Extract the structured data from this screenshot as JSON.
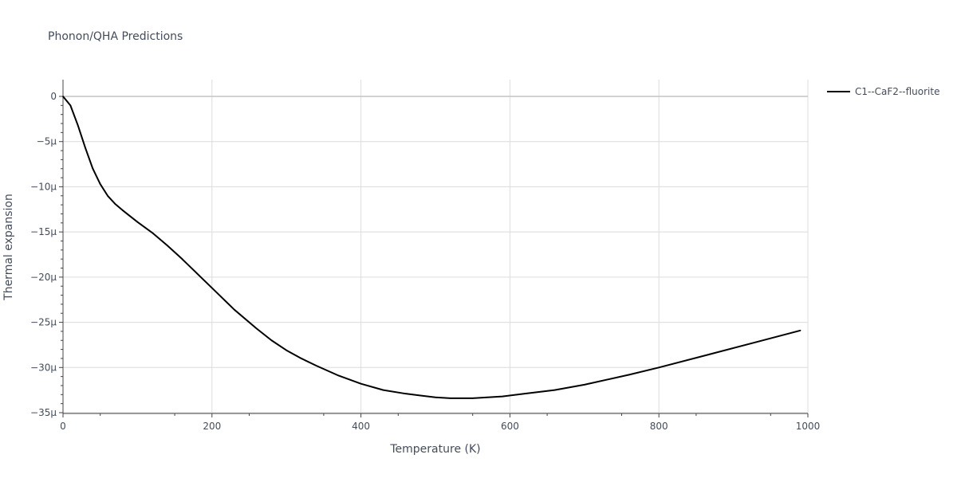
{
  "chart_data": {
    "type": "line",
    "title": "Phonon/QHA Predictions",
    "xlabel": "Temperature (K)",
    "ylabel": "Thermal expansion",
    "xlim": [
      0,
      1000
    ],
    "ylim": [
      -35,
      0
    ],
    "x_ticks": [
      0,
      200,
      400,
      600,
      800,
      1000
    ],
    "x_tick_labels": [
      "0",
      "200",
      "400",
      "600",
      "800",
      "1000"
    ],
    "y_ticks": [
      0,
      -5,
      -10,
      -15,
      -20,
      -25,
      -30,
      -35
    ],
    "y_tick_labels": [
      "0",
      "−5μ",
      "−10μ",
      "−15μ",
      "−20μ",
      "−25μ",
      "−30μ",
      "−35μ"
    ],
    "y_unit_scale": "1e-6",
    "grid": true,
    "legend_position": "top-right",
    "series": [
      {
        "name": "C1--CaF2--fluorite",
        "color": "#000000",
        "x": [
          0,
          10,
          20,
          30,
          40,
          50,
          60,
          70,
          80,
          100,
          120,
          140,
          160,
          180,
          200,
          230,
          260,
          280,
          300,
          320,
          340,
          370,
          400,
          430,
          460,
          480,
          500,
          520,
          550,
          590,
          620,
          660,
          700,
          760,
          800,
          870,
          930,
          990
        ],
        "y": [
          0,
          -1.0,
          -3.2,
          -5.7,
          -8.0,
          -9.7,
          -11.0,
          -11.9,
          -12.6,
          -13.9,
          -15.1,
          -16.5,
          -18.0,
          -19.6,
          -21.2,
          -23.6,
          -25.7,
          -27.0,
          -28.1,
          -29.0,
          -29.8,
          -30.9,
          -31.8,
          -32.5,
          -32.9,
          -33.1,
          -33.3,
          -33.4,
          -33.4,
          -33.2,
          -32.9,
          -32.5,
          -31.9,
          -30.8,
          -30.0,
          -28.5,
          -27.2,
          -25.9
        ]
      }
    ]
  }
}
